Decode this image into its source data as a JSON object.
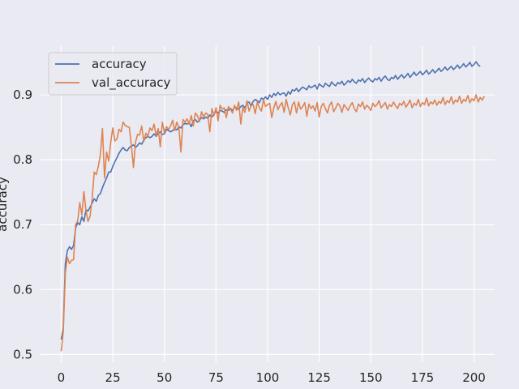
{
  "chart_data": {
    "type": "line",
    "title": "",
    "xlabel": "",
    "ylabel": "accuracy",
    "xlim": [
      -10,
      210
    ],
    "ylim": [
      0.488,
      0.975
    ],
    "xticks": [
      0,
      25,
      50,
      75,
      100,
      125,
      150,
      175,
      200
    ],
    "yticks": [
      0.5,
      0.6,
      0.7,
      0.8,
      0.9
    ],
    "ytick_labels": [
      "0.5",
      "0.6",
      "0.7",
      "0.8",
      "0.9"
    ],
    "grid": true,
    "legend_position": "upper-left",
    "series": [
      {
        "name": "accuracy",
        "color": "#4c72b0",
        "values": [
          0.523,
          0.54,
          0.64,
          0.66,
          0.666,
          0.662,
          0.668,
          0.695,
          0.703,
          0.7,
          0.712,
          0.705,
          0.723,
          0.721,
          0.727,
          0.733,
          0.74,
          0.736,
          0.745,
          0.748,
          0.757,
          0.765,
          0.772,
          0.781,
          0.781,
          0.79,
          0.797,
          0.803,
          0.81,
          0.815,
          0.819,
          0.815,
          0.814,
          0.819,
          0.821,
          0.823,
          0.819,
          0.822,
          0.826,
          0.824,
          0.83,
          0.834,
          0.836,
          0.834,
          0.836,
          0.84,
          0.836,
          0.841,
          0.843,
          0.839,
          0.84,
          0.847,
          0.845,
          0.843,
          0.845,
          0.848,
          0.846,
          0.851,
          0.849,
          0.854,
          0.856,
          0.855,
          0.857,
          0.851,
          0.86,
          0.862,
          0.858,
          0.861,
          0.865,
          0.863,
          0.866,
          0.864,
          0.869,
          0.866,
          0.87,
          0.875,
          0.872,
          0.876,
          0.875,
          0.873,
          0.877,
          0.876,
          0.879,
          0.876,
          0.881,
          0.88,
          0.878,
          0.882,
          0.884,
          0.88,
          0.887,
          0.889,
          0.883,
          0.89,
          0.893,
          0.891,
          0.888,
          0.895,
          0.893,
          0.897,
          0.893,
          0.9,
          0.896,
          0.902,
          0.899,
          0.904,
          0.9,
          0.902,
          0.903,
          0.898,
          0.905,
          0.901,
          0.908,
          0.906,
          0.91,
          0.905,
          0.909,
          0.912,
          0.91,
          0.908,
          0.914,
          0.911,
          0.913,
          0.915,
          0.909,
          0.917,
          0.914,
          0.912,
          0.918,
          0.915,
          0.913,
          0.92,
          0.916,
          0.914,
          0.919,
          0.917,
          0.921,
          0.915,
          0.918,
          0.922,
          0.919,
          0.924,
          0.92,
          0.918,
          0.923,
          0.921,
          0.925,
          0.919,
          0.923,
          0.926,
          0.922,
          0.92,
          0.925,
          0.923,
          0.927,
          0.921,
          0.926,
          0.929,
          0.924,
          0.922,
          0.927,
          0.925,
          0.93,
          0.924,
          0.928,
          0.931,
          0.926,
          0.929,
          0.933,
          0.927,
          0.931,
          0.935,
          0.93,
          0.933,
          0.936,
          0.931,
          0.934,
          0.938,
          0.932,
          0.935,
          0.939,
          0.934,
          0.937,
          0.941,
          0.936,
          0.939,
          0.943,
          0.938,
          0.941,
          0.944,
          0.939,
          0.942,
          0.946,
          0.941,
          0.944,
          0.948,
          0.943,
          0.946,
          0.95,
          0.944,
          0.947,
          0.951,
          0.946,
          0.944
        ],
        "notes": ""
      },
      {
        "name": "val_accuracy",
        "color": "#dd8452",
        "values": [
          0.505,
          0.535,
          0.625,
          0.65,
          0.64,
          0.645,
          0.646,
          0.7,
          0.706,
          0.734,
          0.715,
          0.751,
          0.722,
          0.705,
          0.713,
          0.74,
          0.781,
          0.777,
          0.79,
          0.808,
          0.848,
          0.772,
          0.812,
          0.798,
          0.827,
          0.849,
          0.829,
          0.832,
          0.847,
          0.843,
          0.858,
          0.853,
          0.851,
          0.85,
          0.822,
          0.788,
          0.827,
          0.839,
          0.838,
          0.852,
          0.828,
          0.841,
          0.836,
          0.849,
          0.845,
          0.855,
          0.837,
          0.848,
          0.82,
          0.858,
          0.842,
          0.851,
          0.847,
          0.852,
          0.861,
          0.845,
          0.858,
          0.85,
          0.812,
          0.862,
          0.858,
          0.863,
          0.855,
          0.868,
          0.852,
          0.872,
          0.868,
          0.859,
          0.874,
          0.866,
          0.872,
          0.87,
          0.843,
          0.879,
          0.868,
          0.88,
          0.86,
          0.884,
          0.878,
          0.88,
          0.865,
          0.882,
          0.878,
          0.872,
          0.884,
          0.876,
          0.889,
          0.855,
          0.881,
          0.873,
          0.891,
          0.875,
          0.883,
          0.885,
          0.871,
          0.889,
          0.88,
          0.875,
          0.893,
          0.882,
          0.885,
          0.887,
          0.865,
          0.88,
          0.89,
          0.877,
          0.884,
          0.888,
          0.873,
          0.893,
          0.88,
          0.869,
          0.885,
          0.889,
          0.872,
          0.889,
          0.878,
          0.882,
          0.888,
          0.867,
          0.886,
          0.879,
          0.883,
          0.875,
          0.888,
          0.866,
          0.882,
          0.887,
          0.879,
          0.872,
          0.884,
          0.889,
          0.874,
          0.88,
          0.887,
          0.883,
          0.873,
          0.885,
          0.881,
          0.876,
          0.883,
          0.888,
          0.879,
          0.874,
          0.886,
          0.882,
          0.889,
          0.878,
          0.884,
          0.881,
          0.876,
          0.887,
          0.882,
          0.885,
          0.891,
          0.88,
          0.884,
          0.888,
          0.878,
          0.885,
          0.882,
          0.889,
          0.883,
          0.879,
          0.887,
          0.884,
          0.89,
          0.881,
          0.886,
          0.892,
          0.88,
          0.887,
          0.884,
          0.893,
          0.882,
          0.888,
          0.885,
          0.895,
          0.883,
          0.889,
          0.886,
          0.892,
          0.884,
          0.89,
          0.887,
          0.896,
          0.885,
          0.891,
          0.888,
          0.897,
          0.886,
          0.892,
          0.889,
          0.898,
          0.887,
          0.893,
          0.89,
          0.899,
          0.888,
          0.894,
          0.891,
          0.9,
          0.889,
          0.896,
          0.892,
          0.898
        ],
        "notes": ""
      }
    ]
  }
}
